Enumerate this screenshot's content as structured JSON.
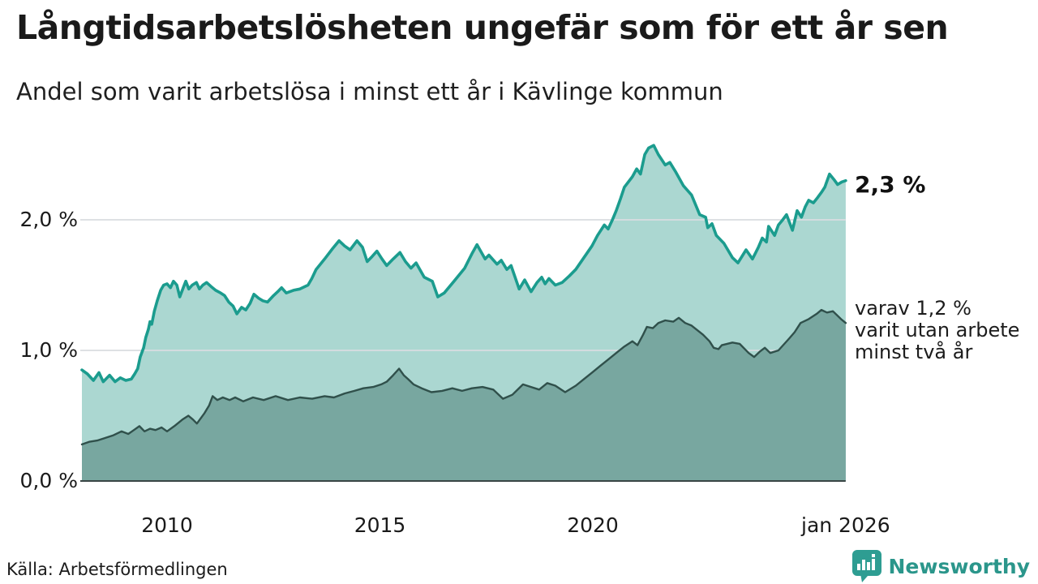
{
  "header": {
    "title": "Långtidsarbetslösheten ungefär som för ett år sen",
    "subtitle": "Andel som varit arbetslösa i minst ett år i Kävlinge kommun"
  },
  "footer": {
    "source": "Källa: Arbetsförmedlingen",
    "brand_name": "Newsworthy"
  },
  "colors": {
    "total_line": "#1b9c8e",
    "total_fill": "#abd7d1",
    "two_year_line": "#30504b",
    "two_year_fill": "#78a7a0",
    "gridline": "#d9dde1",
    "baseline": "#3a4645",
    "brand_teal": "#2e9d92"
  },
  "chart_data": {
    "type": "area",
    "title": "Långtidsarbetslösheten ungefär som för ett år sen",
    "subtitle": "Andel som varit arbetslösa i minst ett år i Kävlinge kommun",
    "unit": "%",
    "grid": "horizontal",
    "x_range": [
      2008.0,
      2025.94
    ],
    "ylim": [
      0,
      2.7
    ],
    "x_axis": {
      "ticks": [
        {
          "year": 2010,
          "label": "2010"
        },
        {
          "year": 2015,
          "label": "2015"
        },
        {
          "year": 2020,
          "label": "2020"
        },
        {
          "year": 2025.94,
          "label": "jan 2026"
        }
      ]
    },
    "y_axis": {
      "ticks": [
        {
          "value": 0,
          "label": "0,0 %"
        },
        {
          "value": 1,
          "label": "1,0 %"
        },
        {
          "value": 2,
          "label": "2,0 %"
        }
      ]
    },
    "series": [
      {
        "name": "unemployed-at-least-one-year",
        "end_label": "2,3 %",
        "end_value": 2.3,
        "points": [
          [
            2008.0,
            0.85
          ],
          [
            2008.13,
            0.82
          ],
          [
            2008.27,
            0.77
          ],
          [
            2008.4,
            0.83
          ],
          [
            2008.5,
            0.76
          ],
          [
            2008.65,
            0.81
          ],
          [
            2008.78,
            0.76
          ],
          [
            2008.9,
            0.79
          ],
          [
            2009.03,
            0.77
          ],
          [
            2009.16,
            0.78
          ],
          [
            2009.24,
            0.82
          ],
          [
            2009.31,
            0.86
          ],
          [
            2009.37,
            0.95
          ],
          [
            2009.45,
            1.02
          ],
          [
            2009.5,
            1.1
          ],
          [
            2009.56,
            1.16
          ],
          [
            2009.6,
            1.22
          ],
          [
            2009.64,
            1.2
          ],
          [
            2009.7,
            1.3
          ],
          [
            2009.77,
            1.38
          ],
          [
            2009.85,
            1.46
          ],
          [
            2009.92,
            1.5
          ],
          [
            2010.0,
            1.51
          ],
          [
            2010.08,
            1.48
          ],
          [
            2010.15,
            1.53
          ],
          [
            2010.23,
            1.5
          ],
          [
            2010.3,
            1.41
          ],
          [
            2010.38,
            1.48
          ],
          [
            2010.44,
            1.53
          ],
          [
            2010.51,
            1.47
          ],
          [
            2010.59,
            1.5
          ],
          [
            2010.69,
            1.52
          ],
          [
            2010.76,
            1.47
          ],
          [
            2010.84,
            1.5
          ],
          [
            2010.93,
            1.52
          ],
          [
            2011.03,
            1.49
          ],
          [
            2011.14,
            1.46
          ],
          [
            2011.26,
            1.44
          ],
          [
            2011.35,
            1.42
          ],
          [
            2011.45,
            1.37
          ],
          [
            2011.55,
            1.34
          ],
          [
            2011.64,
            1.28
          ],
          [
            2011.75,
            1.33
          ],
          [
            2011.85,
            1.31
          ],
          [
            2011.95,
            1.36
          ],
          [
            2012.04,
            1.43
          ],
          [
            2012.15,
            1.4
          ],
          [
            2012.25,
            1.38
          ],
          [
            2012.36,
            1.37
          ],
          [
            2012.5,
            1.42
          ],
          [
            2012.6,
            1.45
          ],
          [
            2012.69,
            1.48
          ],
          [
            2012.8,
            1.44
          ],
          [
            2012.97,
            1.46
          ],
          [
            2013.12,
            1.47
          ],
          [
            2013.31,
            1.5
          ],
          [
            2013.4,
            1.55
          ],
          [
            2013.5,
            1.62
          ],
          [
            2013.7,
            1.7
          ],
          [
            2013.89,
            1.78
          ],
          [
            2014.04,
            1.84
          ],
          [
            2014.17,
            1.8
          ],
          [
            2014.3,
            1.77
          ],
          [
            2014.46,
            1.84
          ],
          [
            2014.59,
            1.79
          ],
          [
            2014.7,
            1.68
          ],
          [
            2014.82,
            1.72
          ],
          [
            2014.93,
            1.76
          ],
          [
            2015.05,
            1.7
          ],
          [
            2015.16,
            1.65
          ],
          [
            2015.31,
            1.7
          ],
          [
            2015.47,
            1.75
          ],
          [
            2015.6,
            1.68
          ],
          [
            2015.73,
            1.63
          ],
          [
            2015.85,
            1.67
          ],
          [
            2016.04,
            1.56
          ],
          [
            2016.23,
            1.53
          ],
          [
            2016.36,
            1.41
          ],
          [
            2016.51,
            1.44
          ],
          [
            2016.74,
            1.53
          ],
          [
            2016.99,
            1.63
          ],
          [
            2017.16,
            1.74
          ],
          [
            2017.28,
            1.81
          ],
          [
            2017.47,
            1.7
          ],
          [
            2017.56,
            1.73
          ],
          [
            2017.75,
            1.66
          ],
          [
            2017.85,
            1.69
          ],
          [
            2017.98,
            1.62
          ],
          [
            2018.08,
            1.65
          ],
          [
            2018.27,
            1.47
          ],
          [
            2018.4,
            1.54
          ],
          [
            2018.55,
            1.45
          ],
          [
            2018.69,
            1.52
          ],
          [
            2018.8,
            1.56
          ],
          [
            2018.88,
            1.51
          ],
          [
            2018.97,
            1.55
          ],
          [
            2019.12,
            1.5
          ],
          [
            2019.28,
            1.52
          ],
          [
            2019.45,
            1.57
          ],
          [
            2019.6,
            1.62
          ],
          [
            2019.79,
            1.71
          ],
          [
            2019.98,
            1.8
          ],
          [
            2020.11,
            1.88
          ],
          [
            2020.27,
            1.96
          ],
          [
            2020.36,
            1.93
          ],
          [
            2020.46,
            2.0
          ],
          [
            2020.55,
            2.07
          ],
          [
            2020.65,
            2.16
          ],
          [
            2020.74,
            2.25
          ],
          [
            2020.93,
            2.33
          ],
          [
            2021.03,
            2.39
          ],
          [
            2021.12,
            2.35
          ],
          [
            2021.22,
            2.5
          ],
          [
            2021.31,
            2.55
          ],
          [
            2021.43,
            2.57
          ],
          [
            2021.54,
            2.5
          ],
          [
            2021.7,
            2.42
          ],
          [
            2021.81,
            2.44
          ],
          [
            2021.94,
            2.37
          ],
          [
            2022.13,
            2.26
          ],
          [
            2022.32,
            2.19
          ],
          [
            2022.51,
            2.04
          ],
          [
            2022.65,
            2.02
          ],
          [
            2022.7,
            1.94
          ],
          [
            2022.8,
            1.97
          ],
          [
            2022.9,
            1.88
          ],
          [
            2023.08,
            1.82
          ],
          [
            2023.28,
            1.71
          ],
          [
            2023.41,
            1.67
          ],
          [
            2023.6,
            1.77
          ],
          [
            2023.75,
            1.7
          ],
          [
            2023.89,
            1.79
          ],
          [
            2023.98,
            1.86
          ],
          [
            2024.08,
            1.83
          ],
          [
            2024.13,
            1.95
          ],
          [
            2024.27,
            1.88
          ],
          [
            2024.36,
            1.96
          ],
          [
            2024.46,
            2.0
          ],
          [
            2024.55,
            2.04
          ],
          [
            2024.69,
            1.92
          ],
          [
            2024.8,
            2.07
          ],
          [
            2024.9,
            2.02
          ],
          [
            2024.99,
            2.1
          ],
          [
            2025.07,
            2.15
          ],
          [
            2025.18,
            2.13
          ],
          [
            2025.28,
            2.17
          ],
          [
            2025.37,
            2.21
          ],
          [
            2025.45,
            2.25
          ],
          [
            2025.56,
            2.35
          ],
          [
            2025.66,
            2.31
          ],
          [
            2025.75,
            2.27
          ],
          [
            2025.85,
            2.29
          ],
          [
            2025.94,
            2.3
          ]
        ]
      },
      {
        "name": "unemployed-at-least-two-years",
        "end_label": "varav 1,2 %\nvarit utan arbete\nminst två år",
        "end_value": 1.2,
        "points": [
          [
            2008.0,
            0.28
          ],
          [
            2008.17,
            0.3
          ],
          [
            2008.36,
            0.31
          ],
          [
            2008.55,
            0.33
          ],
          [
            2008.74,
            0.35
          ],
          [
            2008.93,
            0.38
          ],
          [
            2009.09,
            0.36
          ],
          [
            2009.22,
            0.39
          ],
          [
            2009.35,
            0.42
          ],
          [
            2009.47,
            0.38
          ],
          [
            2009.6,
            0.4
          ],
          [
            2009.73,
            0.39
          ],
          [
            2009.87,
            0.41
          ],
          [
            2010.0,
            0.38
          ],
          [
            2010.17,
            0.42
          ],
          [
            2010.36,
            0.47
          ],
          [
            2010.5,
            0.5
          ],
          [
            2010.61,
            0.47
          ],
          [
            2010.7,
            0.44
          ],
          [
            2010.88,
            0.52
          ],
          [
            2010.99,
            0.58
          ],
          [
            2011.07,
            0.65
          ],
          [
            2011.18,
            0.62
          ],
          [
            2011.31,
            0.64
          ],
          [
            2011.47,
            0.62
          ],
          [
            2011.6,
            0.64
          ],
          [
            2011.79,
            0.61
          ],
          [
            2012.02,
            0.64
          ],
          [
            2012.27,
            0.62
          ],
          [
            2012.55,
            0.65
          ],
          [
            2012.84,
            0.62
          ],
          [
            2013.12,
            0.64
          ],
          [
            2013.41,
            0.63
          ],
          [
            2013.7,
            0.65
          ],
          [
            2013.92,
            0.64
          ],
          [
            2014.17,
            0.67
          ],
          [
            2014.4,
            0.69
          ],
          [
            2014.61,
            0.71
          ],
          [
            2014.84,
            0.72
          ],
          [
            2015.03,
            0.74
          ],
          [
            2015.16,
            0.76
          ],
          [
            2015.31,
            0.81
          ],
          [
            2015.45,
            0.86
          ],
          [
            2015.56,
            0.81
          ],
          [
            2015.66,
            0.78
          ],
          [
            2015.79,
            0.74
          ],
          [
            2015.98,
            0.71
          ],
          [
            2016.21,
            0.68
          ],
          [
            2016.46,
            0.69
          ],
          [
            2016.7,
            0.71
          ],
          [
            2016.93,
            0.69
          ],
          [
            2017.16,
            0.71
          ],
          [
            2017.41,
            0.72
          ],
          [
            2017.66,
            0.7
          ],
          [
            2017.89,
            0.63
          ],
          [
            2018.11,
            0.66
          ],
          [
            2018.36,
            0.74
          ],
          [
            2018.55,
            0.72
          ],
          [
            2018.74,
            0.7
          ],
          [
            2018.93,
            0.75
          ],
          [
            2019.12,
            0.73
          ],
          [
            2019.35,
            0.68
          ],
          [
            2019.6,
            0.73
          ],
          [
            2019.79,
            0.78
          ],
          [
            2019.98,
            0.83
          ],
          [
            2020.17,
            0.88
          ],
          [
            2020.36,
            0.93
          ],
          [
            2020.55,
            0.98
          ],
          [
            2020.74,
            1.03
          ],
          [
            2020.93,
            1.07
          ],
          [
            2021.05,
            1.04
          ],
          [
            2021.18,
            1.12
          ],
          [
            2021.27,
            1.18
          ],
          [
            2021.41,
            1.17
          ],
          [
            2021.54,
            1.21
          ],
          [
            2021.7,
            1.23
          ],
          [
            2021.89,
            1.22
          ],
          [
            2022.02,
            1.25
          ],
          [
            2022.17,
            1.21
          ],
          [
            2022.32,
            1.19
          ],
          [
            2022.59,
            1.12
          ],
          [
            2022.74,
            1.07
          ],
          [
            2022.84,
            1.02
          ],
          [
            2022.95,
            1.01
          ],
          [
            2023.03,
            1.04
          ],
          [
            2023.28,
            1.06
          ],
          [
            2023.45,
            1.05
          ],
          [
            2023.66,
            0.98
          ],
          [
            2023.79,
            0.95
          ],
          [
            2023.92,
            0.99
          ],
          [
            2024.04,
            1.02
          ],
          [
            2024.17,
            0.98
          ],
          [
            2024.36,
            1.0
          ],
          [
            2024.61,
            1.09
          ],
          [
            2024.74,
            1.14
          ],
          [
            2024.88,
            1.21
          ],
          [
            2025.07,
            1.24
          ],
          [
            2025.26,
            1.28
          ],
          [
            2025.37,
            1.31
          ],
          [
            2025.5,
            1.29
          ],
          [
            2025.64,
            1.3
          ],
          [
            2025.83,
            1.24
          ],
          [
            2025.94,
            1.21
          ]
        ]
      }
    ]
  }
}
